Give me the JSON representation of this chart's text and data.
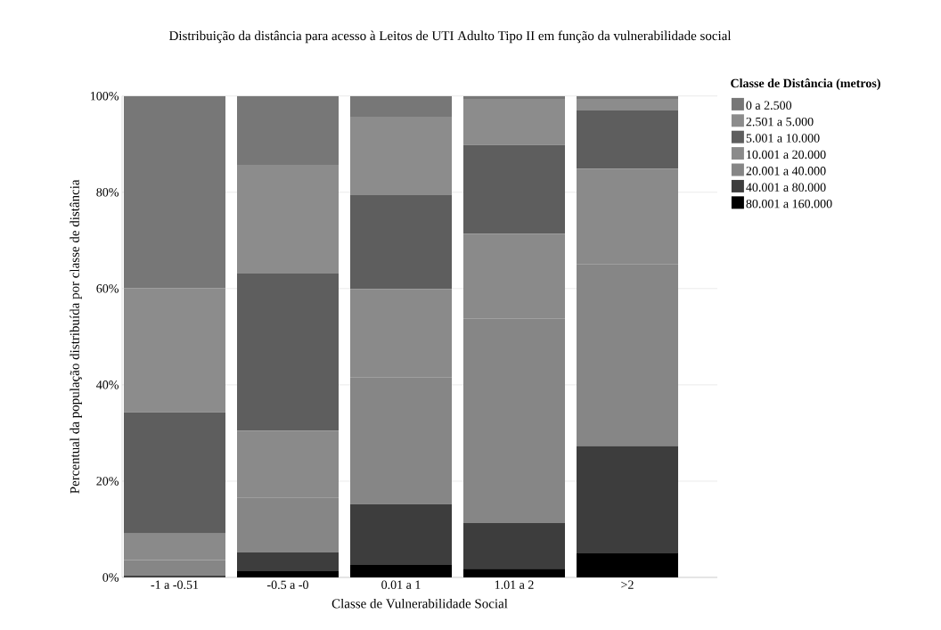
{
  "chart_data": {
    "type": "bar",
    "stacked": true,
    "title": "Distribuição da distância para acesso à Leitos de UTI Adulto Tipo II em função da vulnerabilidade social",
    "xlabel": "Classe de Vulnerabilidade Social",
    "ylabel": "Percentual da população distribuída por classe de distância",
    "legend_title": "Classe de Distância (metros)",
    "categories": [
      "-1 a -0.51",
      "-0.5 a -0",
      "0.01 a 1",
      "1.01 a 2",
      ">2"
    ],
    "series": [
      {
        "name": "80.001 a 160.000",
        "color": "#000000",
        "values": [
          0.1,
          1.3,
          2.6,
          1.8,
          5.0
        ]
      },
      {
        "name": "40.001 a 80.000",
        "color": "#3d3d3d",
        "values": [
          0.3,
          3.9,
          12.6,
          9.5,
          22.3
        ]
      },
      {
        "name": "20.001 a 40.000",
        "color": "#868686",
        "values": [
          3.2,
          11.4,
          26.3,
          42.4,
          37.7
        ]
      },
      {
        "name": "10.001 a 20.000",
        "color": "#8a8a8a",
        "values": [
          5.5,
          13.9,
          18.4,
          17.7,
          19.9
        ]
      },
      {
        "name": "5.001 a 10.000",
        "color": "#5e5e5e",
        "values": [
          25.2,
          32.6,
          19.5,
          18.4,
          12.1
        ]
      },
      {
        "name": "2.501 a 5.000",
        "color": "#8c8c8c",
        "values": [
          25.8,
          22.6,
          16.3,
          9.6,
          2.4
        ]
      },
      {
        "name": "0 a 2.500",
        "color": "#777777",
        "values": [
          39.9,
          14.3,
          4.3,
          0.6,
          0.6
        ]
      }
    ],
    "ylim": [
      0,
      100
    ],
    "yticks": [
      {
        "value": 0,
        "label": "0%"
      },
      {
        "value": 20,
        "label": "20%"
      },
      {
        "value": 40,
        "label": "40%"
      },
      {
        "value": 60,
        "label": "60%"
      },
      {
        "value": 80,
        "label": "80%"
      },
      {
        "value": 100,
        "label": "100%"
      }
    ],
    "grid": "y",
    "legend": "top right"
  }
}
